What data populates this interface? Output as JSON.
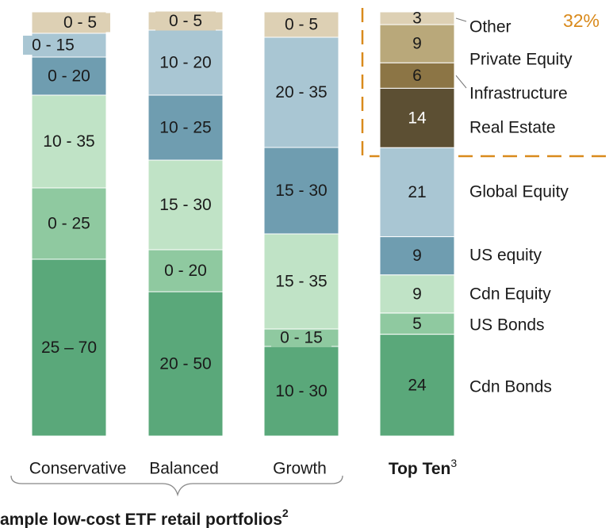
{
  "portfolios": [
    {
      "name": "Conservative",
      "segments": [
        "25 – 70",
        "0 - 25",
        "10 - 35",
        "0 - 20",
        "0 - 15",
        "0 - 5"
      ]
    },
    {
      "name": "Balanced",
      "segments": [
        "20 - 50",
        "0 - 20",
        "15 - 30",
        "10 - 25",
        "10 - 20",
        "0 - 5"
      ]
    },
    {
      "name": "Growth",
      "segments": [
        "10 - 30",
        "0 - 15",
        "15 - 35",
        "15 - 30",
        "20 - 35",
        "0 - 5"
      ]
    }
  ],
  "top_ten": {
    "name": "Top Ten",
    "note": "3",
    "categories": [
      "Cdn Bonds",
      "US Bonds",
      "Cdn Equity",
      "US equity",
      "Global Equity",
      "Real Estate",
      "Infrastructure",
      "Private Equity",
      "Other"
    ],
    "values": [
      24,
      5,
      9,
      9,
      21,
      14,
      6,
      9,
      3
    ]
  },
  "callout": "32%",
  "footer": {
    "text": "ample low-cost ETF retail portfolios",
    "note": "2"
  }
}
